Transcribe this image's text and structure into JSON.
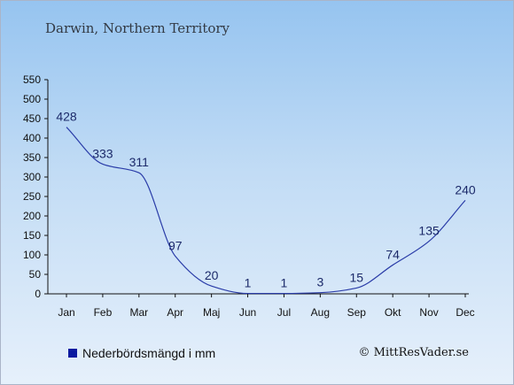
{
  "title": "Darwin, Northern Territory",
  "legend": {
    "label": "Nederbördsmängd i mm",
    "color": "#0a1aa0"
  },
  "credit": "© MittResVader.se",
  "colors": {
    "line": "#2a3ca8",
    "axis": "#111111",
    "label": "#1c2a6a"
  },
  "chart_data": {
    "type": "line",
    "title": "Darwin, Northern Territory",
    "xlabel": "",
    "ylabel": "",
    "categories": [
      "Jan",
      "Feb",
      "Mar",
      "Apr",
      "Maj",
      "Jun",
      "Jul",
      "Aug",
      "Sep",
      "Okt",
      "Nov",
      "Dec"
    ],
    "series": [
      {
        "name": "Nederbördsmängd i mm",
        "values": [
          428,
          333,
          311,
          97,
          20,
          1,
          1,
          3,
          15,
          74,
          135,
          240
        ]
      }
    ],
    "ylim": [
      0,
      550
    ],
    "yticks": [
      0,
      50,
      100,
      150,
      200,
      250,
      300,
      350,
      400,
      450,
      500,
      550
    ],
    "grid": false,
    "legend_position": "bottom-left"
  }
}
